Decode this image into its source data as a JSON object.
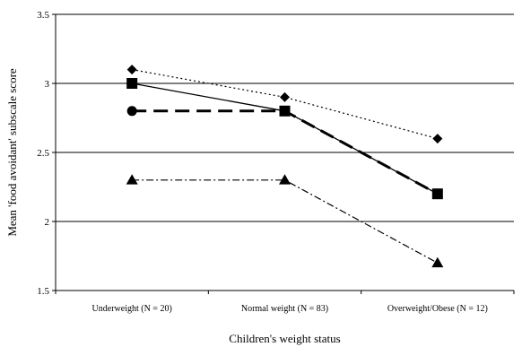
{
  "chart_data": {
    "type": "line",
    "title": "",
    "xlabel": "Children's weight status",
    "ylabel": "Mean 'food avoidant' subscale score",
    "categories": [
      "Underweight (N = 20)",
      "Normal weight (N = 83)",
      "Overweight/Obese (N = 12)"
    ],
    "ylim": [
      1.5,
      3.5
    ],
    "yticks": [
      1.5,
      2,
      2.5,
      3,
      3.5
    ],
    "ytick_labels": [
      "1.5",
      "2",
      "2.5",
      "3",
      "3.5"
    ],
    "grid": true,
    "legend": "none",
    "series": [
      {
        "values": [
          3.1,
          2.9,
          2.6
        ],
        "marker": "diamond",
        "linestyle": "dotted"
      },
      {
        "values": [
          3.0,
          2.8,
          2.2
        ],
        "marker": "square",
        "linestyle": "solid"
      },
      {
        "values": [
          2.8,
          2.8,
          2.2
        ],
        "marker": "circle",
        "linestyle": "long-dash"
      },
      {
        "values": [
          2.3,
          2.3,
          1.7
        ],
        "marker": "triangle",
        "linestyle": "dash-dot"
      }
    ]
  }
}
